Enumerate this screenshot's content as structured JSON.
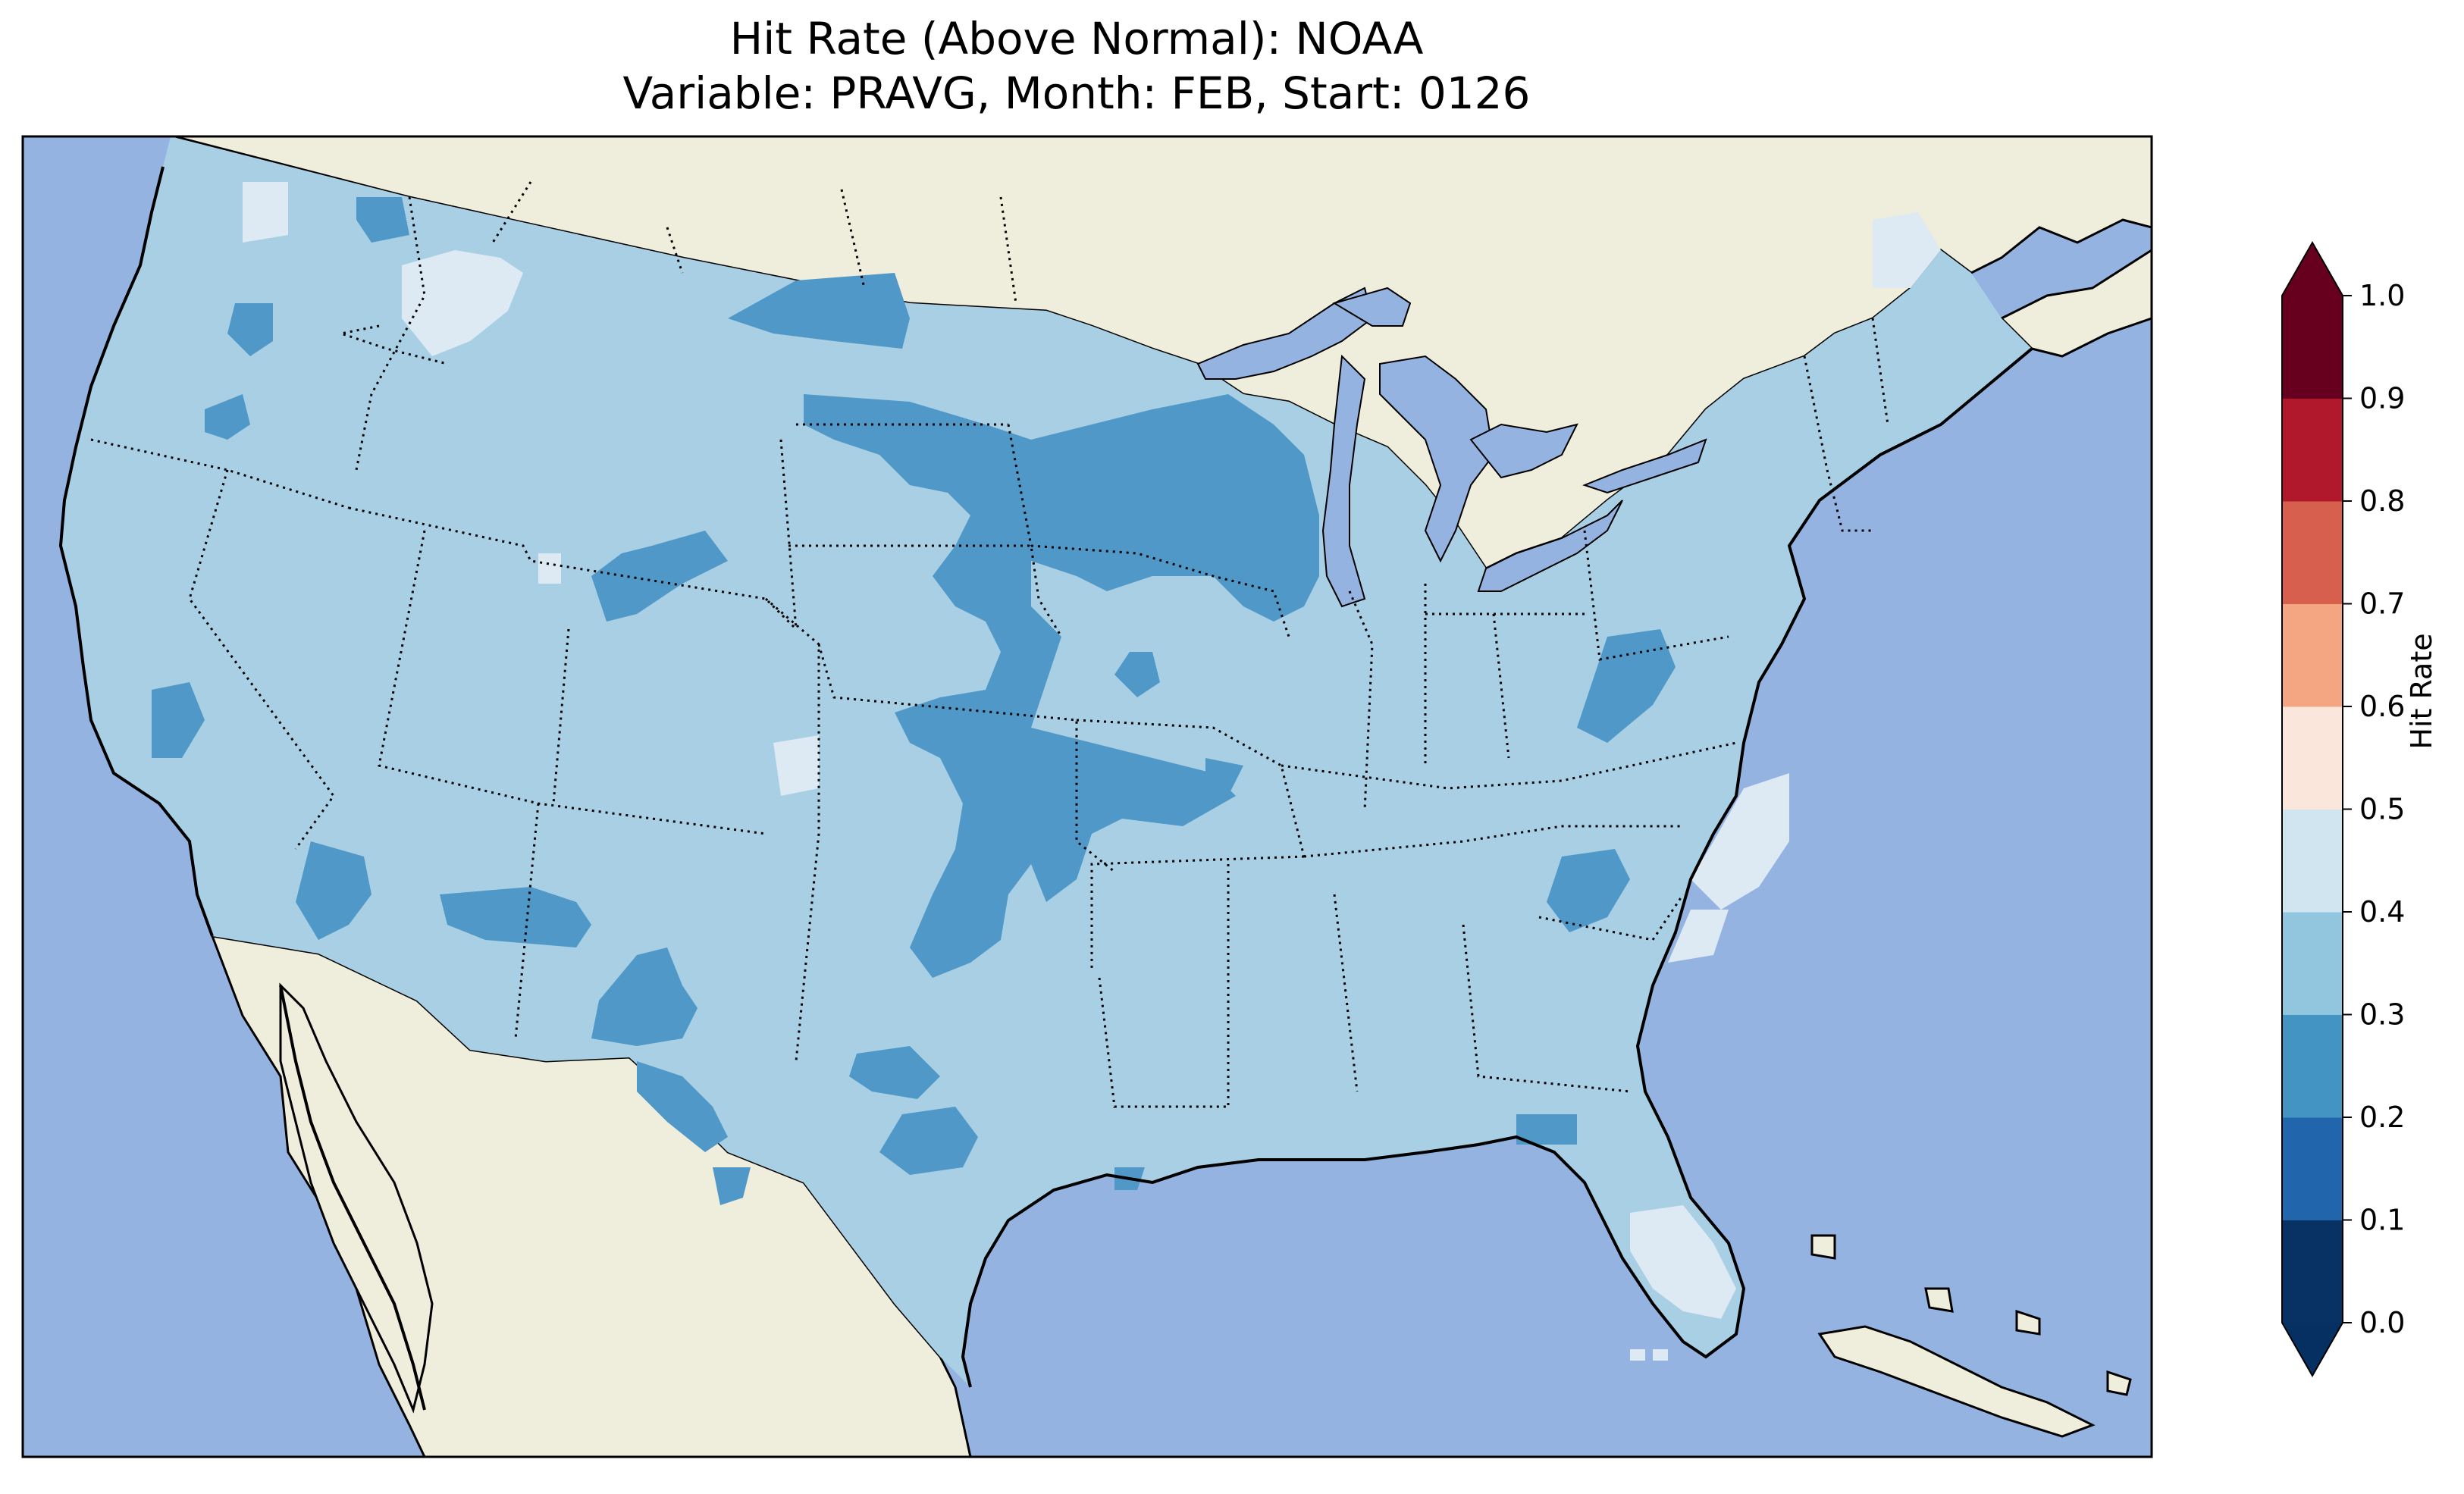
{
  "title": {
    "line1": "Hit Rate (Above Normal): NOAA",
    "line2": "Variable: PRAVG, Month: FEB, Start: 0126"
  },
  "colors": {
    "ocean": "#95b3e0",
    "land": "#efeddc",
    "lakes": "#95b3e0"
  },
  "colorbar": {
    "label": "Hit Rate",
    "ticks": [
      "0.0",
      "0.1",
      "0.2",
      "0.3",
      "0.4",
      "0.5",
      "0.6",
      "0.7",
      "0.8",
      "0.9",
      "1.0"
    ],
    "bins": [
      {
        "range": [
          0.0,
          0.1
        ],
        "color": "#083263"
      },
      {
        "range": [
          0.1,
          0.2
        ],
        "color": "#2166ac"
      },
      {
        "range": [
          0.2,
          0.3
        ],
        "color": "#4393c3"
      },
      {
        "range": [
          0.3,
          0.4
        ],
        "color": "#92c5de"
      },
      {
        "range": [
          0.4,
          0.5
        ],
        "color": "#d1e5f0"
      },
      {
        "range": [
          0.5,
          0.6
        ],
        "color": "#fbe6dc"
      },
      {
        "range": [
          0.6,
          0.7
        ],
        "color": "#f4a582"
      },
      {
        "range": [
          0.7,
          0.8
        ],
        "color": "#d6604d"
      },
      {
        "range": [
          0.8,
          0.9
        ],
        "color": "#b2182b"
      },
      {
        "range": [
          0.9,
          1.0
        ],
        "color": "#67001f"
      }
    ],
    "extend": "both",
    "under_color": "#053061",
    "over_color": "#67001f"
  },
  "map_fill": {
    "base_class": "0.3-0.4",
    "base_color": "#a8cfe3",
    "low_color": "#4f98c8",
    "high_color": "#deeaf3"
  }
}
